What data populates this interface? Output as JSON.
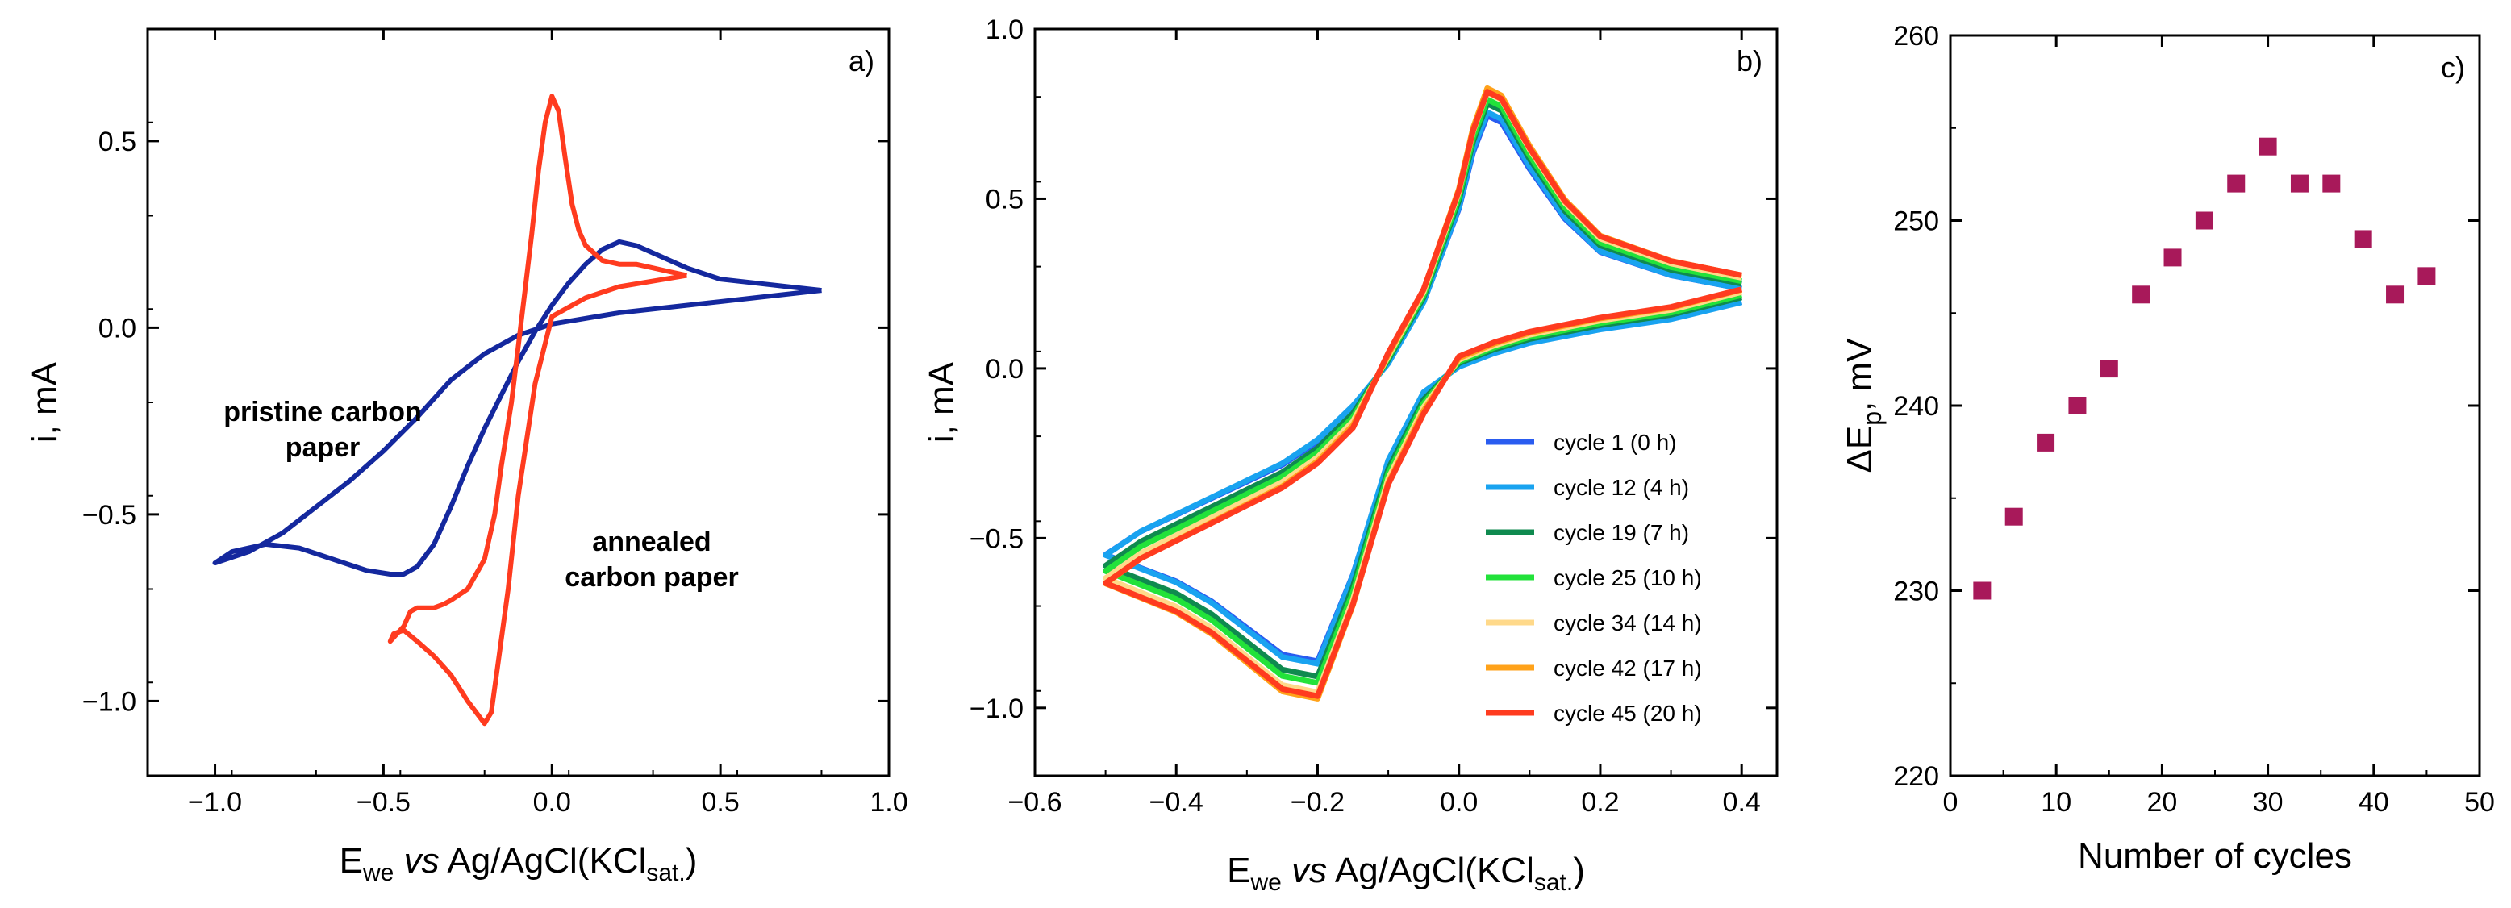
{
  "chart_data": [
    {
      "type": "line",
      "panel_label": "a)",
      "xlabel": {
        "main": "E",
        "sub": "we",
        "italic": "vs",
        "rest": " Ag/AgCl(KCl",
        "sub2": "sat.",
        "close": ")"
      },
      "ylabel": "i, mA",
      "xlim": [
        -1.2,
        1.0
      ],
      "ylim": [
        -1.2,
        0.8
      ],
      "xticks": [
        -1.0,
        -0.5,
        0.0,
        0.5,
        1.0
      ],
      "xtick_labels": [
        "−1.0",
        "−0.5",
        "0.0",
        "0.5",
        "1.0"
      ],
      "yticks": [
        -1.0,
        -0.5,
        0.0,
        0.5
      ],
      "ytick_labels": [
        "−1.0",
        "−0.5",
        "0.0",
        "0.5"
      ],
      "annotations": [
        {
          "lines": [
            "pristine carbon",
            "paper"
          ],
          "color": "#1a2fa8"
        },
        {
          "lines": [
            "annealed",
            "carbon paper"
          ],
          "color": "#ff4020"
        }
      ],
      "series": [
        {
          "color": "#14289e",
          "x": [
            0.8,
            0.6,
            0.4,
            0.2,
            0.0,
            -0.1,
            -0.2,
            -0.3,
            -0.4,
            -0.5,
            -0.6,
            -0.7,
            -0.8,
            -0.9,
            -1.0,
            -0.95,
            -0.85,
            -0.75,
            -0.65,
            -0.55,
            -0.48,
            -0.44,
            -0.4,
            -0.35,
            -0.3,
            -0.25,
            -0.2,
            -0.15,
            -0.1,
            -0.05,
            0.0,
            0.05,
            0.1,
            0.15,
            0.2,
            0.25,
            0.3,
            0.4,
            0.5,
            0.6,
            0.7,
            0.8
          ],
          "y": [
            0.1,
            0.08,
            0.06,
            0.04,
            0.01,
            -0.02,
            -0.07,
            -0.14,
            -0.24,
            -0.33,
            -0.41,
            -0.48,
            -0.55,
            -0.6,
            -0.63,
            -0.6,
            -0.58,
            -0.59,
            -0.62,
            -0.65,
            -0.66,
            -0.66,
            -0.64,
            -0.58,
            -0.48,
            -0.37,
            -0.27,
            -0.18,
            -0.09,
            -0.01,
            0.06,
            0.12,
            0.17,
            0.21,
            0.23,
            0.22,
            0.2,
            0.16,
            0.13,
            0.12,
            0.11,
            0.1
          ]
        },
        {
          "color": "#ff3b1f",
          "x": [
            0.4,
            0.2,
            0.1,
            0.0,
            -0.05,
            -0.1,
            -0.13,
            -0.16,
            -0.18,
            -0.2,
            -0.25,
            -0.3,
            -0.35,
            -0.4,
            -0.44,
            -0.47,
            -0.48,
            -0.44,
            -0.42,
            -0.4,
            -0.37,
            -0.35,
            -0.32,
            -0.3,
            -0.25,
            -0.2,
            -0.17,
            -0.15,
            -0.12,
            -0.1,
            -0.08,
            -0.06,
            -0.04,
            -0.02,
            0.0,
            0.02,
            0.04,
            0.06,
            0.08,
            0.1,
            0.15,
            0.2,
            0.25,
            0.3,
            0.35,
            0.4
          ],
          "y": [
            0.14,
            0.11,
            0.08,
            0.03,
            -0.15,
            -0.45,
            -0.7,
            -0.9,
            -1.03,
            -1.06,
            -1.0,
            -0.93,
            -0.88,
            -0.84,
            -0.81,
            -0.82,
            -0.84,
            -0.8,
            -0.76,
            -0.75,
            -0.75,
            -0.75,
            -0.74,
            -0.73,
            -0.7,
            -0.62,
            -0.5,
            -0.37,
            -0.2,
            -0.05,
            0.1,
            0.25,
            0.42,
            0.55,
            0.62,
            0.58,
            0.45,
            0.33,
            0.26,
            0.22,
            0.18,
            0.17,
            0.17,
            0.16,
            0.15,
            0.14
          ]
        }
      ]
    },
    {
      "type": "line",
      "panel_label": "b)",
      "xlabel": {
        "main": "E",
        "sub": "we",
        "italic": "vs",
        "rest": " Ag/AgCl(KCl",
        "sub2": "sat.",
        "close": ")"
      },
      "ylabel": "i, mA",
      "xlim": [
        -0.6,
        0.45
      ],
      "ylim": [
        -1.2,
        1.0
      ],
      "xticks": [
        -0.6,
        -0.4,
        -0.2,
        0.0,
        0.2,
        0.4
      ],
      "xtick_labels": [
        "−0.6",
        "−0.4",
        "−0.2",
        "0.0",
        "0.2",
        "0.4"
      ],
      "yticks": [
        -1.0,
        -0.5,
        0.0,
        0.5,
        1.0
      ],
      "ytick_labels": [
        "−1.0",
        "−0.5",
        "0.0",
        "0.5",
        "1.0"
      ],
      "legend_position": "lower-right",
      "base_curve": {
        "x": [
          0.4,
          0.3,
          0.2,
          0.1,
          0.05,
          0.0,
          -0.05,
          -0.1,
          -0.15,
          -0.2,
          -0.25,
          -0.3,
          -0.35,
          -0.4,
          -0.45,
          -0.5,
          -0.45,
          -0.4,
          -0.35,
          -0.3,
          -0.25,
          -0.2,
          -0.15,
          -0.1,
          -0.05,
          0.0,
          0.02,
          0.04,
          0.06,
          0.1,
          0.15,
          0.2,
          0.3,
          0.4
        ],
        "y": [
          0.2,
          0.15,
          0.12,
          0.08,
          0.05,
          0.01,
          -0.08,
          -0.28,
          -0.62,
          -0.88,
          -0.86,
          -0.78,
          -0.7,
          -0.64,
          -0.6,
          -0.56,
          -0.49,
          -0.44,
          -0.39,
          -0.34,
          -0.29,
          -0.22,
          -0.12,
          0.02,
          0.2,
          0.48,
          0.65,
          0.76,
          0.74,
          0.6,
          0.45,
          0.35,
          0.28,
          0.24
        ]
      },
      "series": [
        {
          "name": "cycle 1 (0 h)",
          "color": "#2a5cf0",
          "dy": 0.0,
          "scale": 0.98
        },
        {
          "name": "cycle 12 (4 h)",
          "color": "#19a3f0",
          "dy": 0.01,
          "scale": 1.0
        },
        {
          "name": "cycle 19 (7 h)",
          "color": "#0f8a4f",
          "dy": -0.01,
          "scale": 1.02
        },
        {
          "name": "cycle 25 (10 h)",
          "color": "#22e23a",
          "dy": -0.02,
          "scale": 1.03
        },
        {
          "name": "cycle 34 (14 h)",
          "color": "#ffd98a",
          "dy": -0.03,
          "scale": 1.05
        },
        {
          "name": "cycle 42 (17 h)",
          "color": "#ffa21a",
          "dy": -0.04,
          "scale": 1.06
        },
        {
          "name": "cycle 45 (20 h)",
          "color": "#ff3b1f",
          "dy": -0.05,
          "scale": 1.04
        }
      ]
    },
    {
      "type": "scatter",
      "panel_label": "c)",
      "xlabel": "Number of cycles",
      "ylabel": {
        "main": "ΔE",
        "sub": "p",
        "rest": ", mV"
      },
      "xlim": [
        0,
        50
      ],
      "ylim": [
        220,
        260
      ],
      "xticks": [
        0,
        10,
        20,
        30,
        40,
        50
      ],
      "xtick_labels": [
        "0",
        "10",
        "20",
        "30",
        "40",
        "50"
      ],
      "yticks": [
        220,
        230,
        240,
        250,
        260
      ],
      "ytick_labels": [
        "220",
        "230",
        "240",
        "250",
        "260"
      ],
      "marker_color": "#a8195a",
      "x": [
        3,
        6,
        9,
        12,
        15,
        18,
        21,
        24,
        27,
        30,
        33,
        36,
        39,
        42,
        45
      ],
      "y": [
        230,
        234,
        238,
        240,
        242,
        246,
        248,
        250,
        252,
        254,
        252,
        252,
        249,
        246,
        247
      ]
    }
  ]
}
